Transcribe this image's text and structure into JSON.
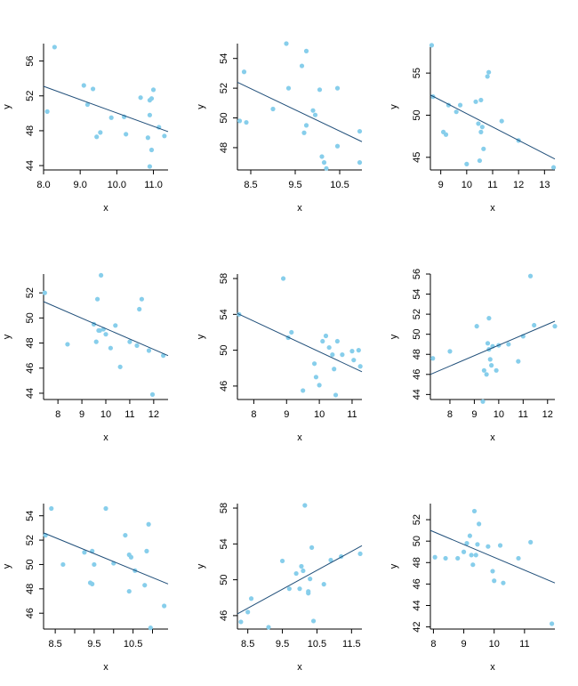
{
  "colors": {
    "point": "#87ceeb",
    "regression_line": "#1f4e79",
    "axis": "#000000",
    "background": "#ffffff"
  },
  "chart_data": [
    {
      "type": "scatter",
      "xlabel": "x",
      "ylabel": "y",
      "xlim": [
        8.0,
        11.4
      ],
      "ylim": [
        43.5,
        58.0
      ],
      "xticks": [
        8.0,
        9.0,
        10.0,
        11.0
      ],
      "xtick_labels": [
        "8.0",
        "9.0",
        "10.0",
        "11.0"
      ],
      "yticks": [
        44,
        48,
        52,
        56
      ],
      "ytick_labels": [
        "44",
        "48",
        "52",
        "56"
      ],
      "x": [
        8.1,
        8.3,
        9.1,
        9.2,
        9.35,
        9.45,
        9.55,
        9.85,
        10.2,
        10.25,
        10.65,
        10.85,
        10.9,
        10.9,
        10.95,
        10.95,
        11.0,
        11.15,
        11.3,
        10.9
      ],
      "y": [
        50.2,
        57.6,
        53.2,
        51.0,
        52.8,
        47.3,
        47.8,
        49.5,
        49.6,
        47.6,
        51.8,
        47.2,
        49.8,
        51.5,
        45.8,
        51.7,
        52.7,
        48.4,
        47.4,
        43.9
      ],
      "line": {
        "x": [
          8.0,
          11.4
        ],
        "y": [
          53.1,
          47.9
        ]
      }
    },
    {
      "type": "scatter",
      "xlabel": "x",
      "ylabel": "y",
      "xlim": [
        8.2,
        11.0
      ],
      "ylim": [
        46.5,
        55.0
      ],
      "xticks": [
        8.5,
        9.5,
        10.5
      ],
      "xtick_labels": [
        "8.5",
        "9.5",
        "10.5"
      ],
      "yticks": [
        48,
        50,
        52,
        54
      ],
      "ytick_labels": [
        "48",
        "50",
        "52",
        "54"
      ],
      "x": [
        8.25,
        8.35,
        8.4,
        9.0,
        9.3,
        9.35,
        9.65,
        9.7,
        9.75,
        9.75,
        9.9,
        9.95,
        10.05,
        10.1,
        10.15,
        10.2,
        10.45,
        10.45,
        10.95,
        10.95
      ],
      "y": [
        49.8,
        53.1,
        49.7,
        50.6,
        55.0,
        52.0,
        53.5,
        49.0,
        54.5,
        49.5,
        50.5,
        50.2,
        51.9,
        47.4,
        47.0,
        46.6,
        52.0,
        48.1,
        49.1,
        47.0
      ],
      "line": {
        "x": [
          8.2,
          11.0
        ],
        "y": [
          52.4,
          48.4
        ]
      }
    },
    {
      "type": "scatter",
      "xlabel": "x",
      "ylabel": "y",
      "xlim": [
        8.6,
        13.4
      ],
      "ylim": [
        43.5,
        58.5
      ],
      "xticks": [
        9,
        10,
        11,
        12,
        13
      ],
      "xtick_labels": [
        "9",
        "10",
        "11",
        "12",
        "13"
      ],
      "yticks": [
        45,
        50,
        55
      ],
      "ytick_labels": [
        "45",
        "50",
        "55"
      ],
      "x": [
        8.65,
        8.7,
        9.1,
        9.2,
        9.3,
        9.6,
        9.75,
        10.0,
        10.35,
        10.45,
        10.5,
        10.55,
        10.55,
        10.6,
        10.65,
        10.8,
        10.85,
        11.35,
        12.0,
        13.35
      ],
      "y": [
        58.3,
        52.2,
        48.0,
        47.7,
        51.2,
        50.4,
        51.2,
        44.2,
        51.6,
        49.0,
        44.6,
        51.8,
        48.0,
        48.6,
        46.0,
        54.6,
        55.1,
        49.3,
        47.0,
        43.8
      ],
      "line": {
        "x": [
          8.6,
          13.4
        ],
        "y": [
          52.4,
          44.8
        ]
      }
    },
    {
      "type": "scatter",
      "xlabel": "x",
      "ylabel": "y",
      "xlim": [
        7.4,
        12.6
      ],
      "ylim": [
        43.5,
        53.5
      ],
      "xticks": [
        8,
        9,
        10,
        11,
        12
      ],
      "xtick_labels": [
        "8",
        "9",
        "10",
        "11",
        "12"
      ],
      "yticks": [
        44,
        46,
        48,
        50,
        52
      ],
      "ytick_labels": [
        "44",
        "46",
        "48",
        "50",
        "52"
      ],
      "x": [
        7.45,
        8.4,
        9.5,
        9.6,
        9.65,
        9.75,
        9.8,
        9.9,
        10.0,
        10.2,
        10.4,
        10.6,
        11.0,
        11.3,
        11.4,
        11.5,
        11.8,
        11.95,
        12.4,
        9.7
      ],
      "y": [
        52.0,
        47.9,
        49.5,
        48.1,
        51.5,
        49.0,
        53.4,
        49.1,
        48.7,
        47.6,
        49.4,
        46.1,
        48.1,
        47.8,
        50.7,
        51.5,
        47.4,
        43.9,
        47.0,
        49.0
      ],
      "line": {
        "x": [
          7.4,
          12.6
        ],
        "y": [
          51.3,
          47.0
        ]
      }
    },
    {
      "type": "scatter",
      "xlabel": "x",
      "ylabel": "y",
      "xlim": [
        7.5,
        11.3
      ],
      "ylim": [
        44.5,
        58.5
      ],
      "xticks": [
        8,
        9,
        10,
        11
      ],
      "xtick_labels": [
        "8",
        "9",
        "10",
        "11"
      ],
      "yticks": [
        46,
        50,
        54,
        58
      ],
      "ytick_labels": [
        "46",
        "50",
        "54",
        "58"
      ],
      "x": [
        7.55,
        8.9,
        9.05,
        9.15,
        9.5,
        9.85,
        9.9,
        10.0,
        10.1,
        10.2,
        10.3,
        10.4,
        10.45,
        10.5,
        10.55,
        10.7,
        11.0,
        11.05,
        11.2,
        11.25
      ],
      "y": [
        54.0,
        58.0,
        51.4,
        52.0,
        45.5,
        48.5,
        47.0,
        46.1,
        51.0,
        51.6,
        50.3,
        49.5,
        47.9,
        45.0,
        51.0,
        49.5,
        49.9,
        48.9,
        50.0,
        48.2
      ],
      "line": {
        "x": [
          7.5,
          11.3
        ],
        "y": [
          54.1,
          47.6
        ]
      }
    },
    {
      "type": "scatter",
      "xlabel": "x",
      "ylabel": "y",
      "xlim": [
        7.2,
        12.3
      ],
      "ylim": [
        43.5,
        56.0
      ],
      "xticks": [
        8,
        9,
        10,
        11,
        12
      ],
      "xtick_labels": [
        "8",
        "9",
        "10",
        "11",
        "12"
      ],
      "yticks": [
        44,
        46,
        48,
        50,
        52,
        54,
        56
      ],
      "ytick_labels": [
        "44",
        "46",
        "48",
        "50",
        "52",
        "54",
        "56"
      ],
      "x": [
        7.3,
        8.0,
        9.1,
        9.35,
        9.4,
        9.5,
        9.55,
        9.6,
        9.6,
        9.7,
        9.75,
        9.9,
        10.0,
        10.4,
        10.8,
        11.0,
        11.3,
        11.45,
        12.3,
        9.65
      ],
      "y": [
        47.6,
        48.3,
        50.8,
        43.3,
        46.4,
        46.0,
        49.1,
        51.6,
        48.5,
        46.9,
        48.8,
        46.4,
        48.9,
        49.0,
        47.3,
        49.8,
        55.8,
        50.9,
        50.8,
        47.5
      ],
      "line": {
        "x": [
          7.2,
          12.3
        ],
        "y": [
          46.0,
          51.3
        ]
      }
    },
    {
      "type": "scatter",
      "xlabel": "x",
      "ylabel": "y",
      "xlim": [
        8.2,
        11.4
      ],
      "ylim": [
        44.7,
        55.0
      ],
      "xticks": [
        8.5,
        9.0,
        9.5,
        10.0,
        10.5,
        11.0
      ],
      "xtick_labels": [
        "8.5",
        "",
        "9.5",
        "",
        "10.5",
        ""
      ],
      "yticks": [
        46,
        48,
        50,
        52,
        54
      ],
      "ytick_labels": [
        "46",
        "48",
        "50",
        "52",
        "54"
      ],
      "x": [
        8.25,
        8.4,
        8.7,
        9.25,
        9.4,
        9.45,
        9.45,
        9.5,
        9.8,
        10.0,
        10.3,
        10.4,
        10.45,
        10.55,
        10.8,
        10.85,
        10.9,
        10.95,
        11.3,
        10.4
      ],
      "y": [
        52.4,
        54.6,
        50.0,
        51.0,
        48.5,
        51.1,
        48.4,
        50.0,
        54.6,
        50.1,
        52.4,
        47.8,
        50.6,
        49.5,
        48.3,
        51.1,
        53.3,
        44.8,
        46.6,
        50.8
      ],
      "line": {
        "x": [
          8.2,
          11.4
        ],
        "y": [
          52.6,
          48.4
        ]
      }
    },
    {
      "type": "scatter",
      "xlabel": "x",
      "ylabel": "y",
      "xlim": [
        8.2,
        11.8
      ],
      "ylim": [
        44.5,
        58.5
      ],
      "xticks": [
        8.5,
        9.5,
        10.5,
        11.5
      ],
      "xtick_labels": [
        "8.5",
        "9.5",
        "10.5",
        "11.5"
      ],
      "yticks": [
        46,
        50,
        54,
        58
      ],
      "ytick_labels": [
        "46",
        "50",
        "54",
        "58"
      ],
      "x": [
        8.3,
        8.5,
        8.6,
        9.1,
        9.5,
        9.7,
        9.9,
        10.0,
        10.05,
        10.1,
        10.15,
        10.25,
        10.3,
        10.35,
        10.4,
        10.7,
        10.9,
        11.2,
        11.75,
        10.25
      ],
      "y": [
        45.3,
        46.4,
        47.9,
        44.7,
        52.1,
        49.0,
        50.7,
        49.0,
        51.5,
        51.0,
        58.3,
        48.5,
        50.1,
        53.6,
        45.4,
        49.5,
        52.2,
        52.6,
        52.9,
        48.7
      ],
      "line": {
        "x": [
          8.2,
          11.8
        ],
        "y": [
          46.2,
          53.8
        ]
      }
    },
    {
      "type": "scatter",
      "xlabel": "x",
      "ylabel": "y",
      "xlim": [
        7.9,
        12.0
      ],
      "ylim": [
        41.8,
        53.5
      ],
      "xticks": [
        8,
        9,
        10,
        11
      ],
      "xtick_labels": [
        "8",
        "9",
        "10",
        "11"
      ],
      "yticks": [
        42,
        44,
        46,
        48,
        50,
        52
      ],
      "ytick_labels": [
        "42",
        "44",
        "46",
        "48",
        "50",
        "52"
      ],
      "x": [
        8.05,
        8.4,
        8.8,
        9.0,
        9.1,
        9.2,
        9.25,
        9.3,
        9.35,
        9.4,
        9.45,
        9.5,
        9.8,
        9.95,
        10.0,
        10.2,
        10.3,
        10.8,
        11.2,
        11.9
      ],
      "y": [
        48.5,
        48.4,
        48.4,
        49.0,
        49.8,
        50.5,
        48.7,
        47.8,
        52.8,
        48.7,
        49.7,
        51.6,
        49.5,
        47.2,
        46.3,
        49.6,
        46.1,
        48.4,
        49.9,
        42.3
      ],
      "line": {
        "x": [
          7.9,
          12.0
        ],
        "y": [
          51.0,
          46.1
        ]
      }
    }
  ]
}
